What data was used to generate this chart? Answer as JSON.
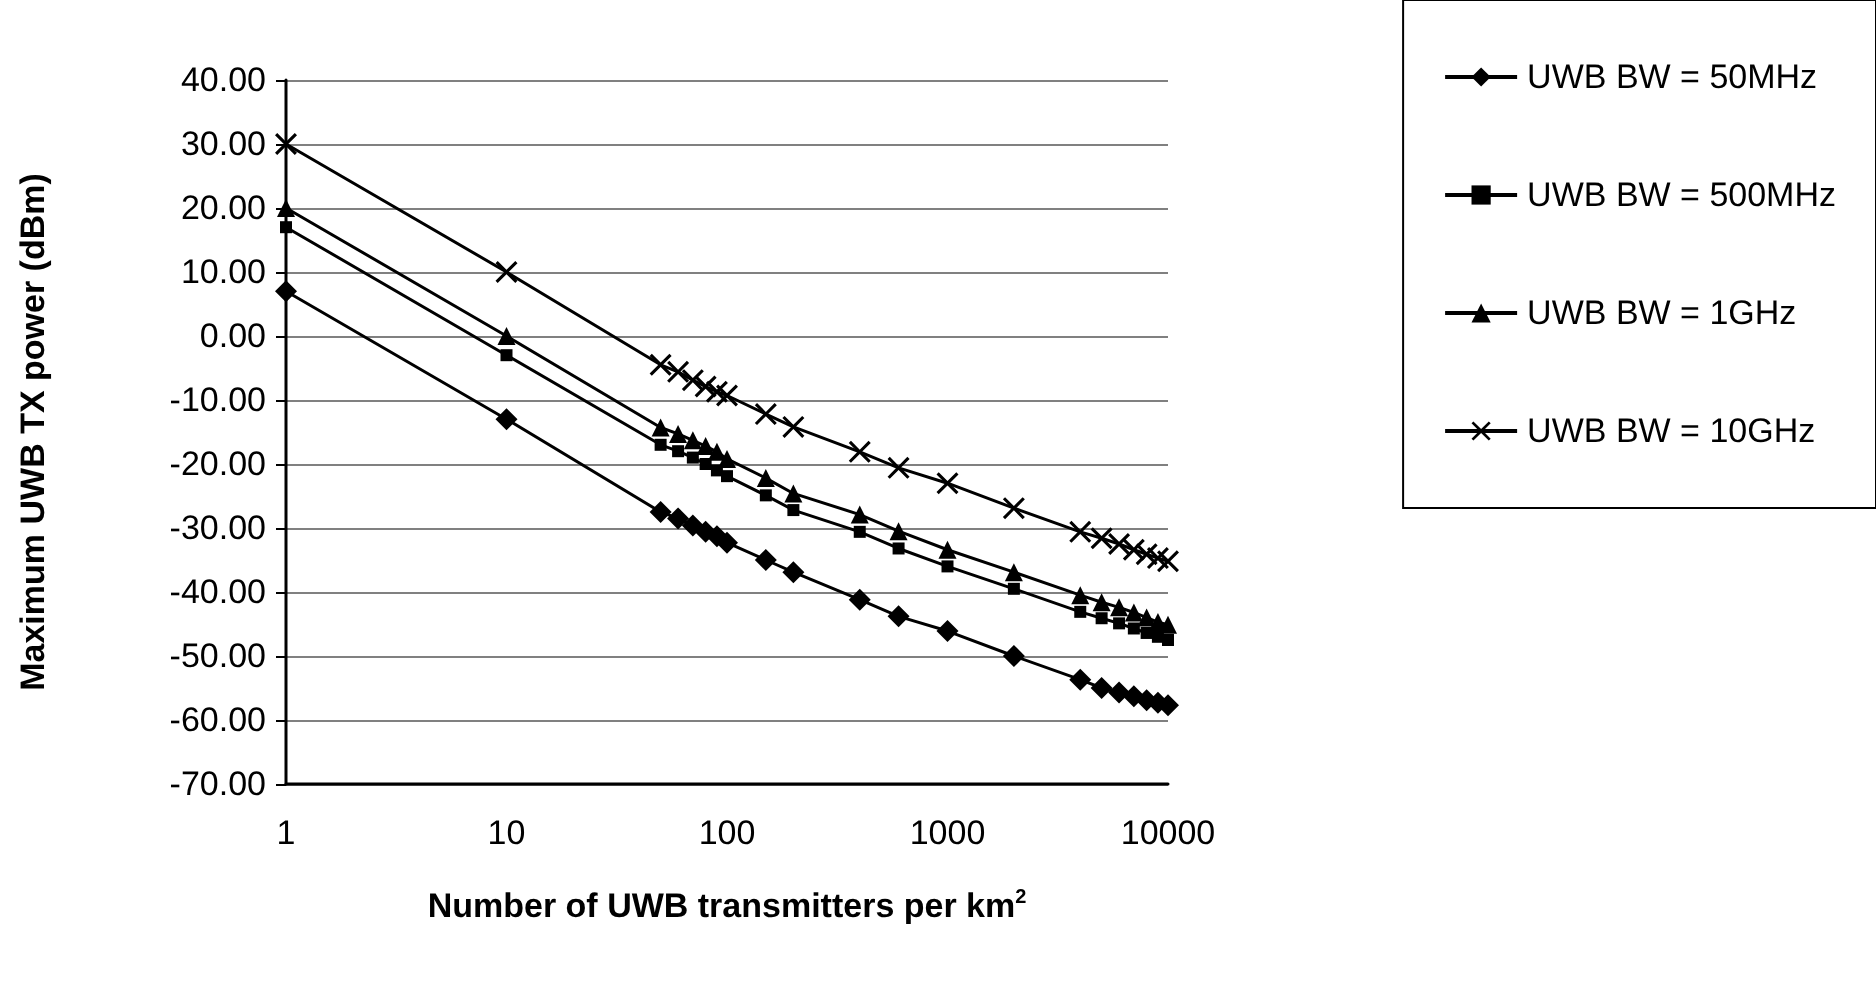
{
  "chart_data": {
    "type": "line",
    "xlabel": "Number of UWB transmitters per km$^{2}$",
    "ylabel": "Maximum UWB TX power (dBm)",
    "x": [
      1,
      10,
      50,
      60,
      70,
      80,
      90,
      100,
      150,
      200,
      400,
      600,
      1000,
      2000,
      4000,
      5000,
      6000,
      7000,
      8000,
      9000,
      10000
    ],
    "series": [
      {
        "name": "UWB BW = 50MHz",
        "color": "#000000",
        "marker": "diamond",
        "values": [
          7,
          -13,
          -27.5,
          -28.5,
          -29.6,
          -30.6,
          -31.3,
          -32.3,
          -35,
          -36.9,
          -41.2,
          -43.8,
          -46.1,
          -50,
          -53.7,
          -55,
          -55.7,
          -56.3,
          -56.9,
          -57.3,
          -57.7
        ]
      },
      {
        "name": "UWB BW = 500MHz",
        "color": "#000000",
        "marker": "square",
        "values": [
          17,
          -3,
          -17,
          -18,
          -19,
          -20,
          -21,
          -21.9,
          -24.9,
          -27.2,
          -30.6,
          -33.2,
          -36,
          -39.5,
          -43.1,
          -44.1,
          -44.9,
          -45.7,
          -46.4,
          -47,
          -47.5
        ]
      },
      {
        "name": "UWB BW = 1GHz",
        "color": "#000000",
        "marker": "triangle",
        "values": [
          20,
          0,
          -14.3,
          -15.3,
          -16.3,
          -17.2,
          -18.1,
          -19.2,
          -22.2,
          -24.6,
          -27.9,
          -30.5,
          -33.4,
          -36.9,
          -40.5,
          -41.6,
          -42.4,
          -43.2,
          -44,
          -44.7,
          -45.1
        ]
      },
      {
        "name": "UWB BW = 10GHz",
        "color": "#000000",
        "marker": "cross",
        "values": [
          30,
          10,
          -4.5,
          -5.6,
          -6.9,
          -7.9,
          -8.7,
          -9.3,
          -12.2,
          -14.2,
          -18.1,
          -20.6,
          -23,
          -26.9,
          -30.6,
          -31.6,
          -32.5,
          -33.4,
          -34.1,
          -34.7,
          -35.2
        ]
      }
    ],
    "xlim": [
      1,
      10000
    ],
    "xticks": [
      1,
      10,
      100,
      1000,
      10000
    ],
    "log": "x",
    "ylim": [
      -70,
      40
    ],
    "yticks": [
      {
        "value": -70,
        "label": "-70.00"
      },
      {
        "value": -60,
        "label": "-60.00"
      },
      {
        "value": -50,
        "label": "-50.00"
      },
      {
        "value": -40,
        "label": "-40.00"
      },
      {
        "value": -30,
        "label": "-30.00"
      },
      {
        "value": -20,
        "label": "-20.00"
      },
      {
        "value": -10,
        "label": "-10.00"
      },
      {
        "value": 0,
        "label": "0.00"
      },
      {
        "value": 10,
        "label": "10.00"
      },
      {
        "value": 20,
        "label": "20.00"
      },
      {
        "value": 30,
        "label": "30.00"
      },
      {
        "value": 40,
        "label": "40.00"
      }
    ],
    "grid": "y",
    "legend": "right",
    "line_style": "solid"
  }
}
